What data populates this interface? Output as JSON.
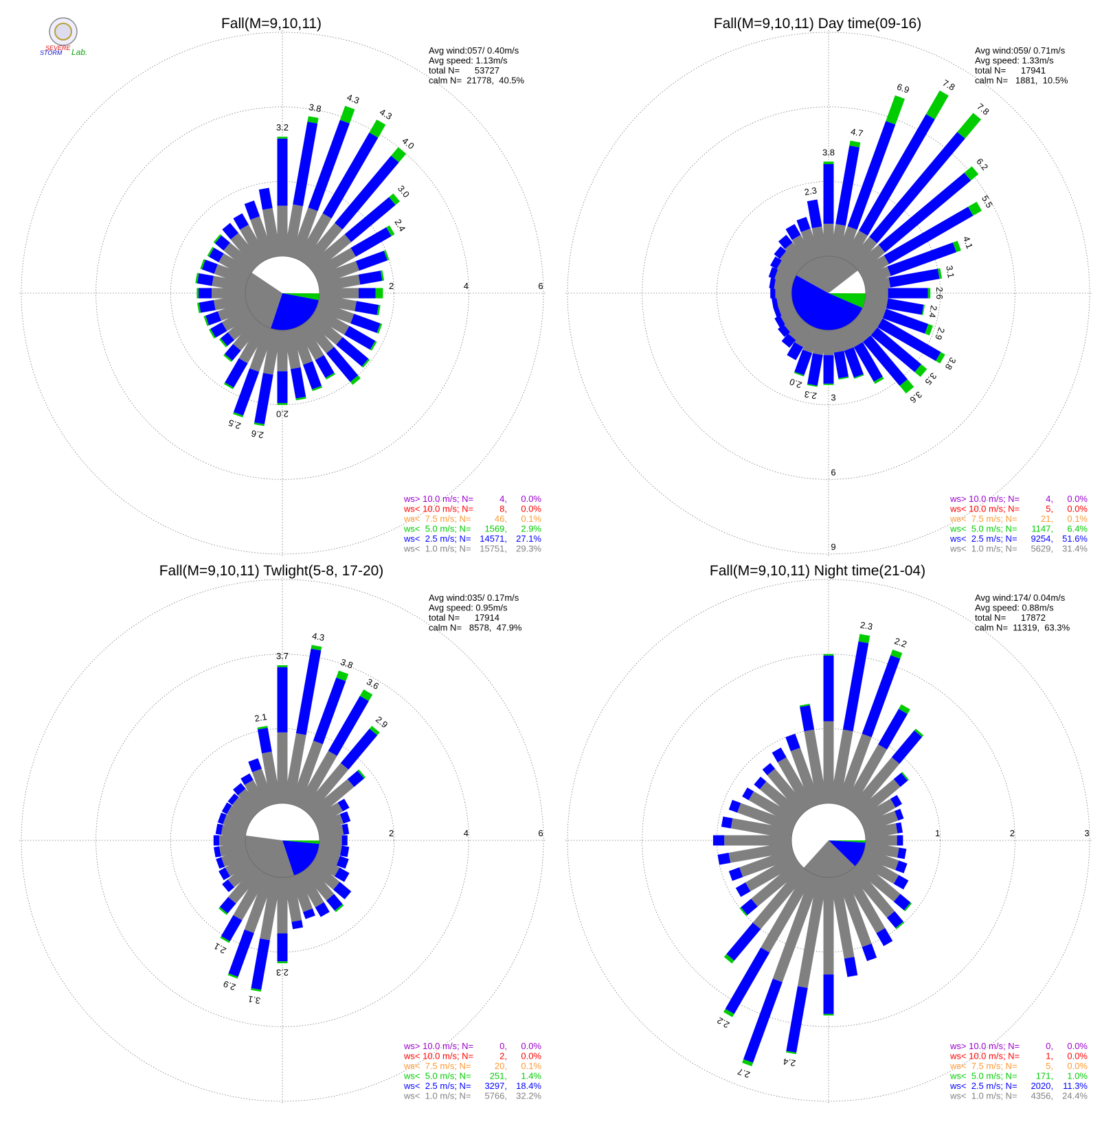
{
  "logo": [
    "SEVERE",
    "STORM",
    "Lab."
  ],
  "chart_data": [
    {
      "type": "windrose",
      "title": "Fall(M=9,10,11)",
      "stats": [
        "Avg wind:057/ 0.40m/s",
        "Avg speed: 1.13m/s",
        "total N=      53727",
        "calm N=  21778,  40.5%"
      ],
      "x": [
        0,
        10,
        20,
        30,
        40,
        50,
        60,
        70,
        80,
        90,
        100,
        110,
        120,
        130,
        140,
        150,
        160,
        170,
        180,
        190,
        200,
        210,
        220,
        230,
        240,
        250,
        260,
        270,
        280,
        290,
        300,
        310,
        320,
        330,
        340,
        350
      ],
      "ylim": [
        0,
        6
      ],
      "yticks": [
        2,
        4,
        6
      ],
      "tick_side": "east",
      "bar_labels": [
        "3.2",
        "3.8",
        "4.3",
        "4.3",
        "4.0",
        "3.0",
        "2.4",
        null,
        null,
        null,
        null,
        null,
        null,
        null,
        null,
        null,
        null,
        null,
        "2.0",
        "2.6",
        "2.5",
        null,
        null,
        null,
        null,
        null,
        null,
        null,
        null,
        null,
        null,
        null,
        null,
        null,
        null,
        null
      ],
      "series": [
        {
          "name": "ws> 10.0 m/s; N=",
          "color": "#9900cc",
          "n": 4,
          "n_label": "4,",
          "percent": 0.0,
          "percent_label": "0.0%"
        },
        {
          "name": "ws< 10.0 m/s; N=",
          "color": "#ff0000",
          "n": 8,
          "n_label": "8,",
          "percent": 0.0,
          "percent_label": "0.0%"
        },
        {
          "name": "ws<  7.5 m/s; N=",
          "color": "#ff9933",
          "n": 46,
          "n_label": "46,",
          "percent": 0.1,
          "percent_label": "0.1%"
        },
        {
          "name": "ws<  5.0 m/s; N=",
          "color": "#00cc00",
          "n": 1569,
          "n_label": "1569,",
          "percent": 2.9,
          "percent_label": "2.9%",
          "values": [
            0.05,
            0.15,
            0.4,
            0.4,
            0.3,
            0.15,
            0.1,
            0.05,
            0.05,
            0.2,
            0.05,
            0.05,
            0.05,
            0.05,
            0.1,
            0.05,
            0.05,
            0.05,
            0.05,
            0.05,
            0.05,
            0.05,
            0.05,
            0.05,
            0.05,
            0.05,
            0.05,
            0.05,
            0.05,
            0.05,
            0.05,
            0.05,
            0,
            0,
            0,
            0
          ]
        },
        {
          "name": "ws<  2.5 m/s; N=",
          "color": "#0000ff",
          "n": 14571,
          "n_label": "14571,",
          "percent": 27.1,
          "percent_label": "27.1%",
          "values": [
            1.8,
            2.25,
            2.5,
            2.5,
            2.35,
            1.55,
            1.1,
            0.8,
            0.6,
            0.45,
            0.6,
            0.75,
            0.8,
            0.9,
            1.0,
            0.55,
            0.7,
            0.8,
            0.85,
            1.35,
            1.25,
            0.75,
            0.35,
            0.25,
            0.35,
            0.35,
            0.4,
            0.35,
            0.4,
            0.35,
            0.3,
            0.3,
            0.35,
            0.35,
            0.45,
            0.55
          ]
        },
        {
          "name": "ws<  1.0 m/s; N=",
          "color": "#808080",
          "n": 15751,
          "n_label": "15751,",
          "percent": 29.3,
          "percent_label": "29.3%",
          "values": [
            1.35,
            1.4,
            1.4,
            1.4,
            1.35,
            1.3,
            1.2,
            1.15,
            1.1,
            1.05,
            1.0,
            1.0,
            1.0,
            1.0,
            1.0,
            1.0,
            1.0,
            1.05,
            1.1,
            1.2,
            1.2,
            1.1,
            0.9,
            0.8,
            0.8,
            0.8,
            0.85,
            0.9,
            0.9,
            0.9,
            0.9,
            0.95,
            1.0,
            1.05,
            1.15,
            1.3
          ]
        }
      ]
    },
    {
      "type": "windrose",
      "title": "Fall(M=9,10,11) Day time(09-16)",
      "stats": [
        "Avg wind:059/ 0.71m/s",
        "Avg speed: 1.33m/s",
        "total N=      17941",
        "calm N=   1881,  10.5%"
      ],
      "x": [
        0,
        10,
        20,
        30,
        40,
        50,
        60,
        70,
        80,
        90,
        100,
        110,
        120,
        130,
        140,
        150,
        160,
        170,
        180,
        190,
        200,
        210,
        220,
        230,
        240,
        250,
        260,
        270,
        280,
        290,
        300,
        310,
        320,
        330,
        340,
        350
      ],
      "ylim": [
        0,
        9
      ],
      "yticks": [
        3,
        6,
        9
      ],
      "tick_side": "south",
      "bar_labels": [
        "3.8",
        "4.7",
        "6.9",
        "7.8",
        "7.8",
        "6.2",
        "5.5",
        "4.1",
        "3.1",
        "2.6",
        "2.4",
        "2.9",
        "3.8",
        "3.5",
        "3.6",
        null,
        null,
        null,
        null,
        "2.3",
        "2.0",
        null,
        null,
        null,
        null,
        null,
        null,
        null,
        null,
        null,
        null,
        null,
        null,
        null,
        null,
        "2.3"
      ],
      "series": [
        {
          "name": "ws> 10.0 m/s; N=",
          "color": "#9900cc",
          "n": 4,
          "n_label": "4,",
          "percent": 0.0,
          "percent_label": "0.0%"
        },
        {
          "name": "ws< 10.0 m/s; N=",
          "color": "#ff0000",
          "n": 5,
          "n_label": "5,",
          "percent": 0.0,
          "percent_label": "0.0%"
        },
        {
          "name": "ws<  7.5 m/s; N=",
          "color": "#ff9933",
          "n": 21,
          "n_label": "21,",
          "percent": 0.1,
          "percent_label": "0.1%"
        },
        {
          "name": "ws<  5.0 m/s; N=",
          "color": "#00cc00",
          "n": 1147,
          "n_label": "1147,",
          "percent": 6.4,
          "percent_label": "6.4%",
          "values": [
            0.1,
            0.2,
            1.1,
            1.1,
            1.0,
            0.4,
            0.4,
            0.2,
            0.1,
            0.1,
            0.05,
            0.2,
            0.2,
            0.3,
            0.4,
            0.1,
            0.05,
            0.05,
            0.05,
            0.05,
            0.05,
            0,
            0,
            0,
            0,
            0,
            0,
            0,
            0,
            0,
            0,
            0,
            0,
            0,
            0,
            0
          ]
        },
        {
          "name": "ws<  2.5 m/s; N=",
          "color": "#0000ff",
          "n": 9254,
          "n_label": "9254,",
          "percent": 51.6,
          "percent_label": "51.6%",
          "values": [
            2.4,
            3.2,
            4.5,
            5.4,
            5.5,
            4.5,
            3.9,
            2.8,
            2.0,
            1.6,
            1.45,
            1.8,
            2.7,
            2.3,
            2.3,
            1.6,
            1.15,
            1.05,
            1.15,
            1.25,
            0.95,
            0.6,
            0.4,
            0.3,
            0.25,
            0.2,
            0.2,
            0.2,
            0.2,
            0.25,
            0.3,
            0.3,
            0.4,
            0.5,
            0.5,
            1.1
          ]
        },
        {
          "name": "ws<  1.0 m/s; N=",
          "color": "#808080",
          "n": 5629,
          "n_label": "5629,",
          "percent": 31.4,
          "percent_label": "31.4%",
          "values": [
            1.3,
            1.3,
            1.3,
            1.3,
            1.3,
            1.3,
            1.2,
            1.1,
            1.0,
            0.9,
            0.9,
            0.9,
            0.9,
            0.9,
            0.9,
            0.9,
            0.9,
            0.9,
            1.0,
            1.0,
            1.0,
            0.9,
            0.8,
            0.7,
            0.65,
            0.6,
            0.6,
            0.65,
            0.7,
            0.75,
            0.8,
            0.9,
            1.0,
            1.1,
            1.2,
            1.2
          ]
        }
      ]
    },
    {
      "type": "windrose",
      "title": "Fall(M=9,10,11) Twlight(5-8, 17-20)",
      "stats": [
        "Avg wind:035/ 0.17m/s",
        "Avg speed: 0.95m/s",
        "total N=      17914",
        "calm N=   8578,  47.9%"
      ],
      "x": [
        0,
        10,
        20,
        30,
        40,
        50,
        60,
        70,
        80,
        90,
        100,
        110,
        120,
        130,
        140,
        150,
        160,
        170,
        180,
        190,
        200,
        210,
        220,
        230,
        240,
        250,
        260,
        270,
        280,
        290,
        300,
        310,
        320,
        330,
        340,
        350
      ],
      "ylim": [
        0,
        6
      ],
      "yticks": [
        2,
        4,
        6
      ],
      "tick_side": "east",
      "bar_labels": [
        "3.7",
        "4.3",
        "3.8",
        "3.6",
        "2.9",
        null,
        null,
        null,
        null,
        null,
        null,
        null,
        null,
        null,
        null,
        null,
        null,
        null,
        "2.3",
        "3.1",
        "2.9",
        "2.1",
        null,
        null,
        null,
        null,
        null,
        null,
        null,
        null,
        null,
        null,
        null,
        null,
        null,
        "2.1"
      ],
      "series": [
        {
          "name": "ws> 10.0 m/s; N=",
          "color": "#9900cc",
          "n": 0,
          "n_label": "0,",
          "percent": 0.0,
          "percent_label": "0.0%"
        },
        {
          "name": "ws< 10.0 m/s; N=",
          "color": "#ff0000",
          "n": 2,
          "n_label": "2,",
          "percent": 0.0,
          "percent_label": "0.0%"
        },
        {
          "name": "ws<  7.5 m/s; N=",
          "color": "#ff9933",
          "n": 20,
          "n_label": "20,",
          "percent": 0.1,
          "percent_label": "0.1%"
        },
        {
          "name": "ws<  5.0 m/s; N=",
          "color": "#00cc00",
          "n": 251,
          "n_label": "251,",
          "percent": 1.4,
          "percent_label": "1.4%",
          "values": [
            0.05,
            0.1,
            0.2,
            0.2,
            0.1,
            0.05,
            0,
            0,
            0,
            0,
            0,
            0,
            0,
            0,
            0.05,
            0,
            0,
            0,
            0.05,
            0.05,
            0.05,
            0.05,
            0.05,
            0,
            0,
            0,
            0,
            0,
            0,
            0,
            0,
            0,
            0,
            0,
            0,
            0.05
          ]
        },
        {
          "name": "ws<  2.5 m/s; N=",
          "color": "#0000ff",
          "n": 3297,
          "n_label": "3297,",
          "percent": 18.4,
          "percent_label": "18.4%",
          "values": [
            1.75,
            2.3,
            1.8,
            1.7,
            1.2,
            0.35,
            0.2,
            0.2,
            0.15,
            0.15,
            0.2,
            0.25,
            0.3,
            0.4,
            0.35,
            0.3,
            0.2,
            0.2,
            0.75,
            1.35,
            1.25,
            0.65,
            0.35,
            0.2,
            0.2,
            0.15,
            0.15,
            0.15,
            0.15,
            0.15,
            0.15,
            0.15,
            0.2,
            0.2,
            0.3,
            0.65
          ]
        },
        {
          "name": "ws<  1.0 m/s; N=",
          "color": "#808080",
          "n": 5766,
          "n_label": "5766,",
          "percent": 32.2,
          "percent_label": "32.2%",
          "values": [
            1.9,
            1.9,
            1.8,
            1.7,
            1.6,
            1.4,
            0.8,
            0.7,
            0.65,
            0.6,
            0.6,
            0.6,
            0.7,
            0.9,
            1.0,
            1.0,
            1.0,
            1.2,
            1.5,
            1.7,
            1.6,
            1.4,
            1.1,
            0.8,
            0.7,
            0.7,
            0.7,
            0.7,
            0.65,
            0.65,
            0.65,
            0.65,
            0.7,
            0.8,
            1.0,
            1.4
          ]
        }
      ]
    },
    {
      "type": "windrose",
      "title": "Fall(M=9,10,11) Night time(21-04)",
      "stats": [
        "Avg wind:174/ 0.04m/s",
        "Avg speed: 0.88m/s",
        "total N=      17872",
        "calm N=  11319,  63.3%"
      ],
      "x": [
        0,
        10,
        20,
        30,
        40,
        50,
        60,
        70,
        80,
        90,
        100,
        110,
        120,
        130,
        140,
        150,
        160,
        170,
        180,
        190,
        200,
        210,
        220,
        230,
        240,
        250,
        260,
        270,
        280,
        290,
        300,
        310,
        320,
        330,
        340,
        350
      ],
      "ylim": [
        0,
        3
      ],
      "yticks": [
        1,
        2,
        3
      ],
      "tick_side": "east",
      "bar_labels": [
        null,
        "2.3",
        "2.2",
        null,
        null,
        null,
        null,
        null,
        null,
        null,
        null,
        null,
        null,
        null,
        null,
        null,
        null,
        null,
        null,
        "2.4",
        "2.7",
        "2.2",
        null,
        null,
        null,
        null,
        null,
        null,
        null,
        null,
        null,
        null,
        null,
        null,
        null,
        null
      ],
      "series": [
        {
          "name": "ws> 10.0 m/s; N=",
          "color": "#9900cc",
          "n": 0,
          "n_label": "0,",
          "percent": 0.0,
          "percent_label": "0.0%"
        },
        {
          "name": "ws< 10.0 m/s; N=",
          "color": "#ff0000",
          "n": 1,
          "n_label": "1,",
          "percent": 0.0,
          "percent_label": "0.0%"
        },
        {
          "name": "ws<  7.5 m/s; N=",
          "color": "#ff9933",
          "n": 5,
          "n_label": "5,",
          "percent": 0.0,
          "percent_label": "0.0%"
        },
        {
          "name": "ws<  5.0 m/s; N=",
          "color": "#00cc00",
          "n": 171,
          "n_label": "171,",
          "percent": 1.0,
          "percent_label": "1.0%",
          "values": [
            0.02,
            0.1,
            0.08,
            0.07,
            0.03,
            0.02,
            0,
            0,
            0,
            0,
            0,
            0,
            0,
            0.02,
            0.02,
            0,
            0,
            0,
            0.02,
            0.02,
            0.05,
            0.05,
            0.05,
            0.02,
            0,
            0,
            0,
            0,
            0,
            0,
            0,
            0,
            0,
            0,
            0,
            0.02
          ]
        },
        {
          "name": "ws<  2.5 m/s; N=",
          "color": "#0000ff",
          "n": 2020,
          "n_label": "2020,",
          "percent": 11.3,
          "percent_label": "11.3%",
          "values": [
            0.88,
            1.2,
            1.12,
            0.55,
            0.47,
            0.13,
            0.1,
            0.08,
            0.07,
            0.08,
            0.1,
            0.12,
            0.15,
            0.18,
            0.18,
            0.2,
            0.2,
            0.25,
            0.53,
            0.88,
            1.15,
            0.95,
            0.55,
            0.18,
            0.15,
            0.15,
            0.15,
            0.15,
            0.13,
            0.12,
            0.1,
            0.1,
            0.1,
            0.15,
            0.2,
            0.33
          ]
        },
        {
          "name": "ws<  1.0 m/s; N=",
          "color": "#808080",
          "n": 4356,
          "n_label": "4356,",
          "percent": 24.4,
          "percent_label": "24.4%",
          "values": [
            1.1,
            1.0,
            1.0,
            0.95,
            0.9,
            0.7,
            0.5,
            0.47,
            0.43,
            0.42,
            0.45,
            0.48,
            0.55,
            0.7,
            0.8,
            0.9,
            1.0,
            1.1,
            1.3,
            1.5,
            1.5,
            1.2,
            1.0,
            0.8,
            0.75,
            0.75,
            0.85,
            0.9,
            0.82,
            0.78,
            0.7,
            0.65,
            0.7,
            0.75,
            0.8,
            1.0
          ]
        }
      ]
    }
  ]
}
